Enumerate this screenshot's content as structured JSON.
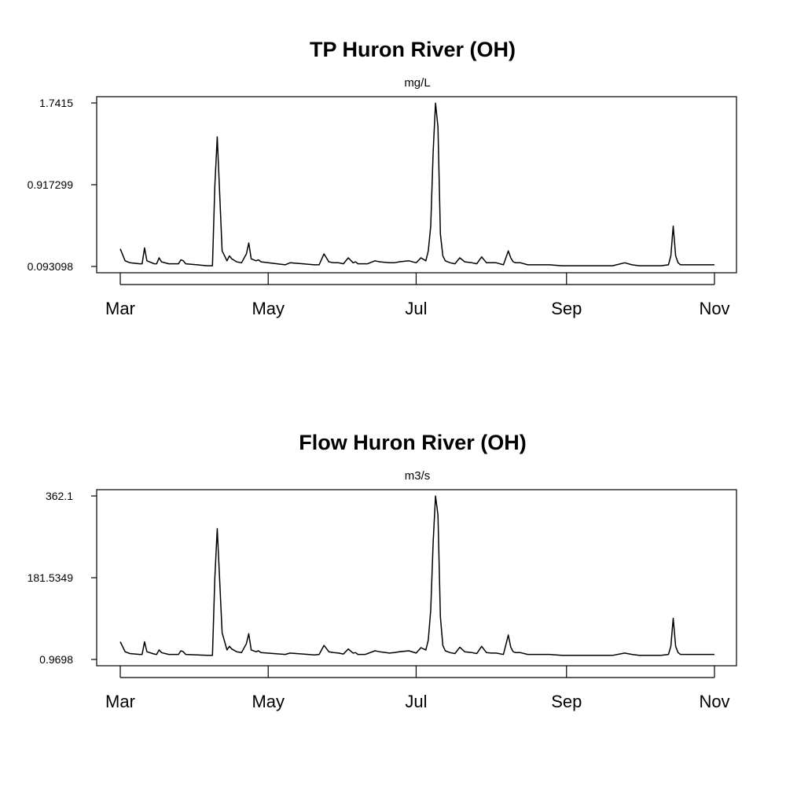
{
  "chart_data": [
    {
      "type": "line",
      "title": "TP Huron River (OH)",
      "subtitle": "mg/L",
      "xlabel": "",
      "ylabel": "",
      "x_tick_labels": [
        "Mar",
        "May",
        "Jul",
        "Sep",
        "Nov"
      ],
      "y_ticks": [
        0.093098,
        0.917299,
        1.7415
      ],
      "y_tick_labels": [
        "0.093098",
        "0.917299",
        "1.7415"
      ],
      "grid": false,
      "series": [
        {
          "x": [
            "03-01",
            "03-03",
            "03-05",
            "03-09",
            "03-10",
            "03-11",
            "03-12",
            "03-15",
            "03-16",
            "03-17",
            "03-18",
            "03-21",
            "03-25",
            "03-26",
            "03-27",
            "03-28",
            "04-06",
            "04-08",
            "04-09",
            "04-10",
            "04-12",
            "04-14",
            "04-15",
            "04-16",
            "04-18",
            "04-20",
            "04-22",
            "04-23",
            "04-24",
            "04-26",
            "04-27",
            "04-28",
            "05-08",
            "05-10",
            "05-20",
            "05-22",
            "05-24",
            "05-26",
            "05-28",
            "05-30",
            "06-01",
            "06-03",
            "06-05",
            "06-06",
            "06-07",
            "06-08",
            "06-10",
            "06-11",
            "06-12",
            "06-14",
            "06-16",
            "06-20",
            "06-22",
            "06-24",
            "06-28",
            "07-01",
            "07-03",
            "07-05",
            "07-06",
            "07-07",
            "07-08",
            "07-09",
            "07-10",
            "07-11",
            "07-12",
            "07-13",
            "07-15",
            "07-17",
            "07-19",
            "07-21",
            "07-24",
            "07-26",
            "07-28",
            "07-30",
            "08-01",
            "08-03",
            "08-06",
            "08-08",
            "08-09",
            "08-10",
            "08-11",
            "08-13",
            "08-16",
            "08-20",
            "08-25",
            "08-30",
            "09-05",
            "09-10",
            "09-15",
            "09-20",
            "09-25",
            "09-28",
            "10-01",
            "10-05",
            "10-10",
            "10-13",
            "10-14",
            "10-15",
            "10-16",
            "10-17",
            "10-18",
            "10-20",
            "10-25",
            "10-30",
            "11-01"
          ],
          "values": [
            0.27,
            0.15,
            0.13,
            0.12,
            0.12,
            0.28,
            0.15,
            0.12,
            0.12,
            0.18,
            0.14,
            0.12,
            0.12,
            0.16,
            0.15,
            0.12,
            0.1,
            0.1,
            0.9,
            1.4,
            0.25,
            0.15,
            0.2,
            0.17,
            0.14,
            0.13,
            0.22,
            0.33,
            0.17,
            0.15,
            0.16,
            0.14,
            0.11,
            0.13,
            0.11,
            0.11,
            0.22,
            0.14,
            0.13,
            0.13,
            0.12,
            0.18,
            0.13,
            0.14,
            0.12,
            0.12,
            0.12,
            0.12,
            0.13,
            0.15,
            0.14,
            0.13,
            0.13,
            0.14,
            0.15,
            0.13,
            0.18,
            0.15,
            0.25,
            0.5,
            1.25,
            1.74,
            1.5,
            0.42,
            0.2,
            0.15,
            0.13,
            0.12,
            0.18,
            0.14,
            0.13,
            0.12,
            0.19,
            0.13,
            0.13,
            0.13,
            0.11,
            0.25,
            0.18,
            0.14,
            0.13,
            0.13,
            0.11,
            0.11,
            0.11,
            0.1,
            0.1,
            0.1,
            0.1,
            0.1,
            0.13,
            0.11,
            0.1,
            0.1,
            0.1,
            0.11,
            0.2,
            0.5,
            0.2,
            0.13,
            0.11,
            0.11,
            0.11,
            0.11,
            0.11
          ]
        }
      ]
    },
    {
      "type": "line",
      "title": "Flow Huron River (OH)",
      "subtitle": "m3/s",
      "xlabel": "",
      "ylabel": "",
      "x_tick_labels": [
        "Mar",
        "May",
        "Jul",
        "Sep",
        "Nov"
      ],
      "y_ticks": [
        0.9698,
        181.5349,
        362.1
      ],
      "y_tick_labels": [
        "0.9698",
        "181.5349",
        "362.1"
      ],
      "grid": false,
      "series": [
        {
          "x": [
            "03-01",
            "03-03",
            "03-05",
            "03-09",
            "03-10",
            "03-11",
            "03-12",
            "03-15",
            "03-16",
            "03-17",
            "03-18",
            "03-21",
            "03-25",
            "03-26",
            "03-27",
            "03-28",
            "04-06",
            "04-08",
            "04-09",
            "04-10",
            "04-12",
            "04-14",
            "04-15",
            "04-16",
            "04-18",
            "04-20",
            "04-22",
            "04-23",
            "04-24",
            "04-26",
            "04-27",
            "04-28",
            "05-08",
            "05-10",
            "05-20",
            "05-22",
            "05-24",
            "05-26",
            "05-28",
            "05-30",
            "06-01",
            "06-03",
            "06-05",
            "06-06",
            "06-07",
            "06-08",
            "06-10",
            "06-11",
            "06-12",
            "06-14",
            "06-16",
            "06-20",
            "06-22",
            "06-24",
            "06-28",
            "07-01",
            "07-03",
            "07-05",
            "07-06",
            "07-07",
            "07-08",
            "07-09",
            "07-10",
            "07-11",
            "07-12",
            "07-13",
            "07-15",
            "07-17",
            "07-19",
            "07-21",
            "07-24",
            "07-26",
            "07-28",
            "07-30",
            "08-01",
            "08-03",
            "08-06",
            "08-08",
            "08-09",
            "08-10",
            "08-11",
            "08-13",
            "08-16",
            "08-20",
            "08-25",
            "08-30",
            "09-05",
            "09-10",
            "09-15",
            "09-20",
            "09-25",
            "09-28",
            "10-01",
            "10-05",
            "10-10",
            "10-13",
            "10-14",
            "10-15",
            "10-16",
            "10-17",
            "10-18",
            "10-20",
            "10-25",
            "10-30",
            "11-01"
          ],
          "values": [
            40,
            18,
            14,
            12,
            12,
            40,
            18,
            13,
            12,
            22,
            16,
            12,
            12,
            20,
            18,
            12,
            10,
            10,
            180,
            290,
            60,
            22,
            30,
            24,
            18,
            16,
            36,
            58,
            22,
            18,
            20,
            16,
            12,
            15,
            11,
            12,
            32,
            18,
            16,
            15,
            13,
            24,
            15,
            16,
            12,
            12,
            12,
            14,
            16,
            20,
            18,
            15,
            16,
            18,
            20,
            15,
            27,
            22,
            44,
            110,
            260,
            362,
            320,
            95,
            32,
            20,
            16,
            14,
            28,
            18,
            16,
            14,
            30,
            16,
            15,
            15,
            12,
            55,
            28,
            18,
            16,
            16,
            12,
            12,
            12,
            10,
            10,
            10,
            10,
            10,
            15,
            12,
            10,
            10,
            10,
            12,
            30,
            92,
            30,
            16,
            12,
            12,
            12,
            12,
            12
          ]
        }
      ]
    }
  ]
}
